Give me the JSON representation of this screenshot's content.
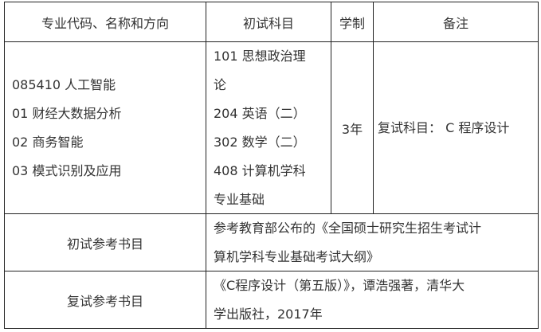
{
  "header": {
    "col1": "专业代码、名称和方向",
    "col2": "初试科目",
    "col3": "学制",
    "col4": "备注"
  },
  "program": {
    "majors": [
      "085410 人工智能",
      "01 财经大数据分析",
      "02 商务智能",
      "03 模式识别及应用"
    ],
    "exam_subjects": [
      "101 思想政治理",
      "论",
      "204 英语（二）",
      "302 数学（二）",
      "408 计算机学科",
      "专业基础"
    ],
    "duration": "3年",
    "remark": "复试科目： C 程序设计"
  },
  "initial_books": {
    "label": "初试参考书目",
    "lines": [
      "参考教育部公布的《全国硕士研究生招生考试计",
      "算机学科专业基础考试大纲》"
    ]
  },
  "retest_books": {
    "label": "复试参考书目",
    "lines": [
      "《C程序设计（第五版）》，谭浩强著，清华大",
      "学出版社，2017年"
    ]
  }
}
